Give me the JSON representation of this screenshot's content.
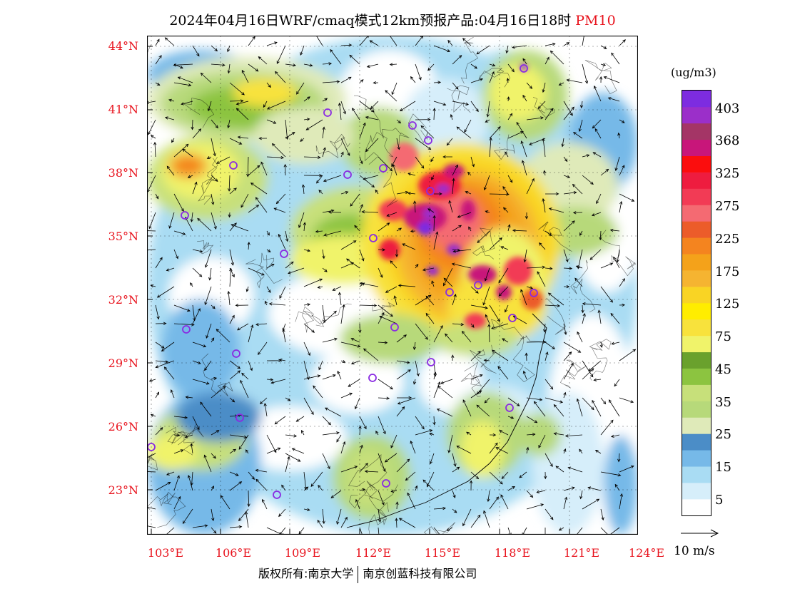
{
  "header": {
    "title": "2024年04月16日WRF/cmaq模式12km预报产品:04月16日18时",
    "product": "PM10"
  },
  "axes": {
    "lat_labels": [
      "44°N",
      "41°N",
      "38°N",
      "35°N",
      "32°N",
      "29°N",
      "26°N",
      "23°N"
    ],
    "lon_labels": [
      "103°E",
      "106°E",
      "109°E",
      "112°E",
      "115°E",
      "118°E",
      "121°E",
      "124°E"
    ]
  },
  "legend": {
    "unit": "(ug/m3)",
    "levels": [
      "403",
      "368",
      "325",
      "275",
      "225",
      "175",
      "125",
      "75",
      "45",
      "35",
      "25",
      "15",
      "5"
    ],
    "colors": [
      "#ffffff",
      "#d6eefa",
      "#a9dcf3",
      "#76b9e8",
      "#4b8dc7",
      "#dfeab9",
      "#b7d97a",
      "#c7e07a",
      "#8cc440",
      "#6aa12d",
      "#f0f36a",
      "#f8e23c",
      "#ffed00",
      "#f9d424",
      "#f5b431",
      "#f4a21a",
      "#f4841f",
      "#ec5c2a",
      "#f46a72",
      "#f23b55",
      "#ee1c3f",
      "#fb0d0d",
      "#c8167a",
      "#a43566",
      "#9b2fc9",
      "#7d2ce0"
    ]
  },
  "wind_vector": {
    "label": "10 m/s"
  },
  "footer": {
    "copyright": "版权所有:南京大学",
    "company": "南京创蓝科技有限公司"
  }
}
